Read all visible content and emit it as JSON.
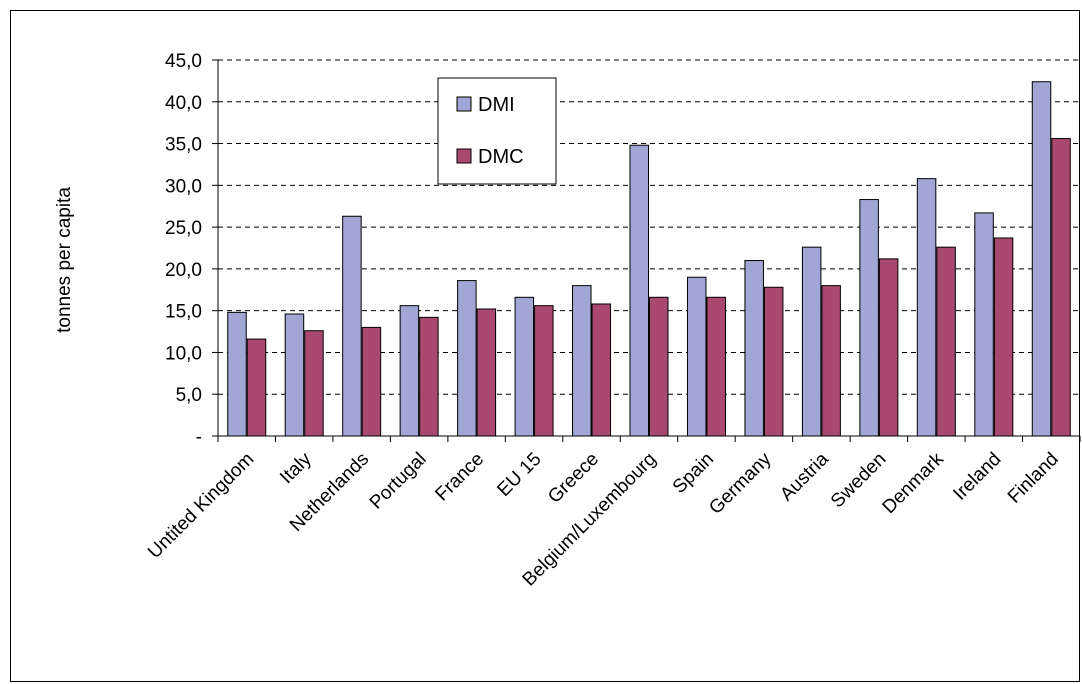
{
  "chart_data": {
    "type": "bar",
    "title": "",
    "xlabel": "",
    "ylabel": "tonnes per capita",
    "ylim": [
      0,
      45
    ],
    "y_ticks": [
      "-",
      "5,0",
      "10,0",
      "15,0",
      "20,0",
      "25,0",
      "30,0",
      "35,0",
      "40,0",
      "45,0"
    ],
    "y_tick_values": [
      0,
      5,
      10,
      15,
      20,
      25,
      30,
      35,
      40,
      45
    ],
    "grid": "horizontal dashed",
    "legend_placement": "top-center",
    "categories": [
      "Untited Kingdom",
      "Italy",
      "Netherlands",
      "Portugal",
      "France",
      "EU 15",
      "Greece",
      "Belgium/Luxembourg",
      "Spain",
      "Germany",
      "Austria",
      "Sweden",
      "Denmark",
      "Ireland",
      "Finland"
    ],
    "series": [
      {
        "name": "DMI",
        "color": "#a2a6d4",
        "values": [
          14.8,
          14.6,
          26.3,
          15.6,
          18.6,
          16.6,
          18.0,
          34.8,
          19.0,
          21.0,
          22.6,
          28.3,
          30.8,
          26.7,
          42.4
        ]
      },
      {
        "name": "DMC",
        "color": "#a9496f",
        "values": [
          11.6,
          12.6,
          13.0,
          14.2,
          15.2,
          15.6,
          15.8,
          16.6,
          16.6,
          17.8,
          18.0,
          21.2,
          22.6,
          23.7,
          35.6
        ]
      }
    ]
  }
}
